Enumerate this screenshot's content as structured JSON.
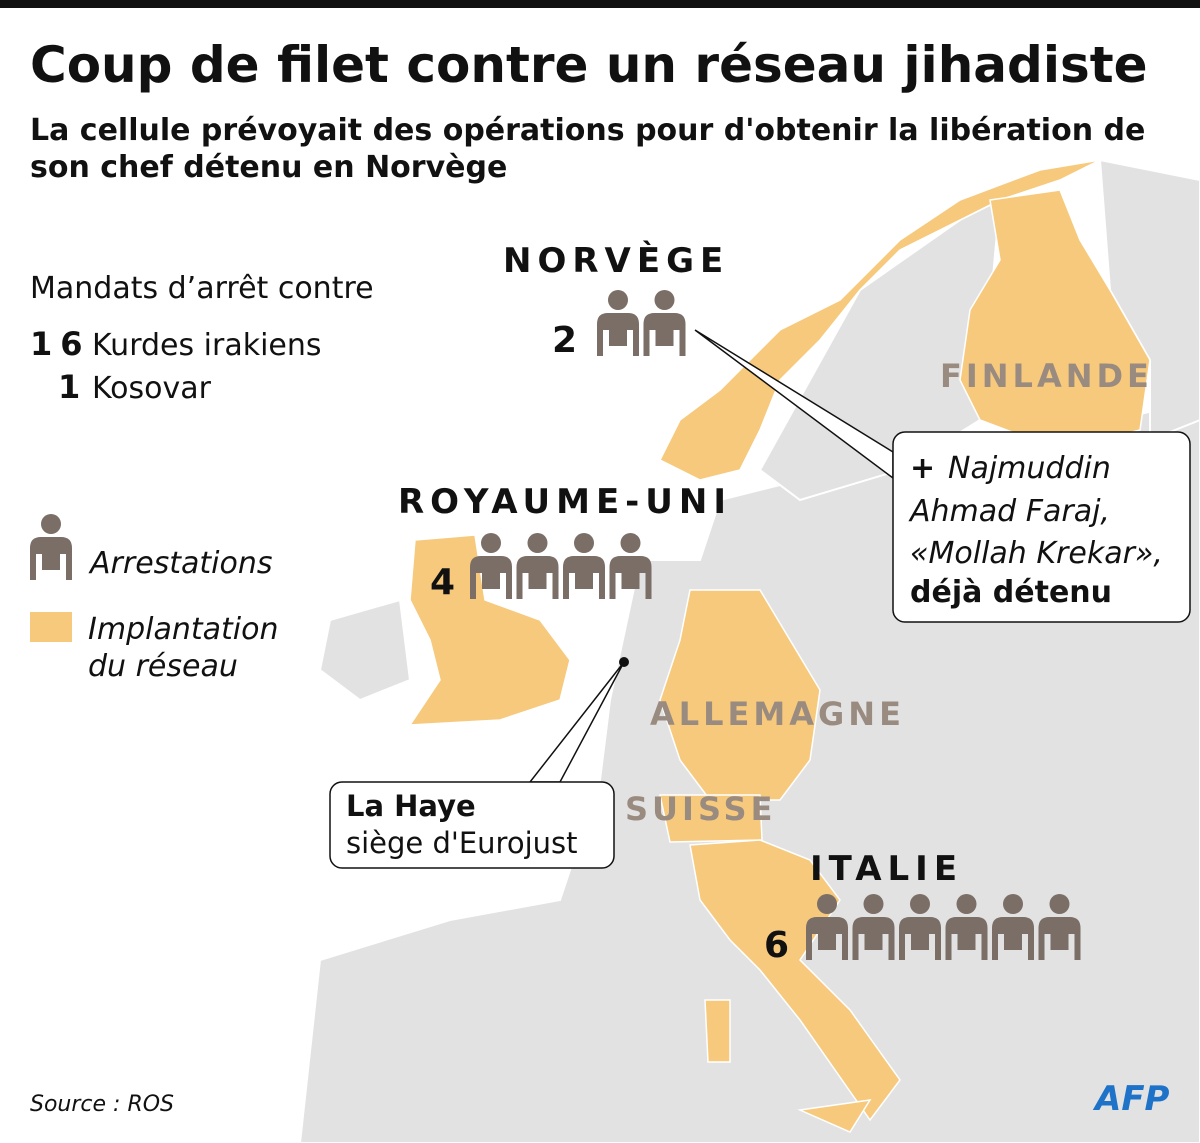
{
  "header": {
    "title": "Coup de filet contre un réseau jihadiste",
    "subtitle_lines": [
      "La cellule prévoyait des opérations pour d'obtenir la libération de",
      "son chef détenu en Norvège"
    ]
  },
  "legend": {
    "heading": "Mandats d’arrêt contre",
    "warrants": [
      {
        "count": 16,
        "label": "Kurdes irakiens"
      },
      {
        "count": 1,
        "label": "Kosovar"
      }
    ],
    "arrests": "Arrestations",
    "network_lines": [
      "Implantation",
      "du réseau"
    ]
  },
  "countries": [
    {
      "name": "NORVÈGE",
      "arrests": 2
    },
    {
      "name": "ROYAUME-UNI",
      "arrests": 4
    },
    {
      "name": "ITALIE",
      "arrests": 6
    }
  ],
  "map_labels": [
    "FINLANDE",
    "ALLEMAGNE",
    "SUISSE"
  ],
  "callouts": {
    "krekar": {
      "prefix": "+",
      "name_lines": [
        "Najmuddin",
        "Ahmad Faraj,",
        "«Mollah Krekar»,"
      ],
      "note": "déjà détenu"
    },
    "la_haye": {
      "title": "La Haye",
      "text": "siège d'Eurojust"
    }
  },
  "source": "Source : ROS",
  "logo": "AFP"
}
